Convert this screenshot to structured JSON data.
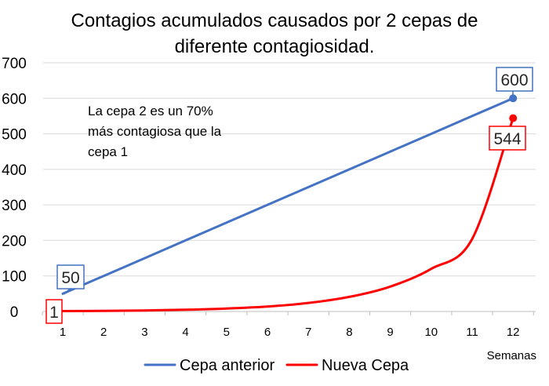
{
  "chart_data": {
    "type": "line",
    "title_lines": [
      "Contagios acumulados causados por 2 cepas de",
      "diferente contagiosidad."
    ],
    "x": [
      1,
      2,
      3,
      4,
      5,
      6,
      7,
      8,
      9,
      10,
      11,
      12
    ],
    "xlabel": "Semanas",
    "ylabel": "",
    "ylim": [
      0,
      700
    ],
    "yticks": [
      0,
      100,
      200,
      300,
      400,
      500,
      600,
      700
    ],
    "grid": true,
    "legend_position": "bottom",
    "annotation_lines": [
      "La cepa 2 es un 70%",
      "más contagiosa que la",
      "cepa 1"
    ],
    "series": [
      {
        "name": "Cepa anterior",
        "color": "#4472c4",
        "values": [
          50,
          100,
          150,
          200,
          250,
          300,
          350,
          400,
          450,
          500,
          550,
          600
        ],
        "labels": [
          {
            "index": 0,
            "text": "50"
          },
          {
            "index": 11,
            "text": "600"
          }
        ]
      },
      {
        "name": "Nueva Cepa",
        "color": "#ff0000",
        "values": [
          1,
          1.7,
          2.9,
          4.9,
          8.4,
          14,
          24,
          41,
          70,
          120,
          204,
          544
        ],
        "labels": [
          {
            "index": 0,
            "text": "1"
          },
          {
            "index": 11,
            "text": "544"
          }
        ]
      }
    ]
  }
}
